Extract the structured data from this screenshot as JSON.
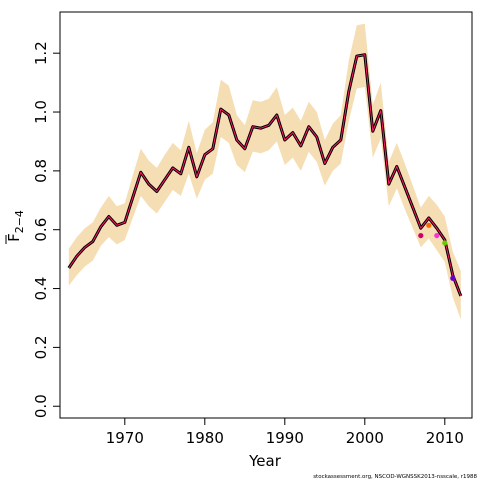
{
  "chart_data": {
    "type": "line",
    "xlabel": "Year",
    "ylabel_main": "F",
    "ylabel_sub": "2−4",
    "footer": "stockassessment.org, NSCOD-WGNSSK2013-nsscale, r1988",
    "xlim": [
      1961.9,
      2013.4
    ],
    "ylim": [
      -0.04,
      1.34
    ],
    "x_ticks": [
      1970,
      1980,
      1990,
      2000,
      2010
    ],
    "x_tick_labels": [
      "1970",
      "1980",
      "1990",
      "2000",
      "2010"
    ],
    "y_ticks": [
      0.0,
      0.2,
      0.4,
      0.6,
      0.8,
      1.0,
      1.2
    ],
    "y_tick_labels": [
      "0.0",
      "0.2",
      "0.4",
      "0.6",
      "0.8",
      "1.0",
      "1.2"
    ],
    "grid": false,
    "colors": {
      "band": "#f5deb3",
      "main": "#000000",
      "overlay": "#ff1a66"
    },
    "series": [
      {
        "x": [
          1963,
          1964,
          1965,
          1966,
          1967,
          1968,
          1969,
          1970,
          1971,
          1972,
          1973,
          1974,
          1975,
          1976,
          1977,
          1978,
          1979,
          1980,
          1981,
          1982,
          1983,
          1984,
          1985,
          1986,
          1987,
          1988,
          1989,
          1990,
          1991,
          1992,
          1993,
          1994,
          1995,
          1996,
          1997,
          1998,
          1999,
          2000,
          2001,
          2002,
          2003,
          2004,
          2005,
          2006,
          2007,
          2008,
          2009,
          2010,
          2011,
          2012
        ],
        "values": [
          0.47,
          0.51,
          0.54,
          0.56,
          0.61,
          0.645,
          0.615,
          0.625,
          0.71,
          0.795,
          0.755,
          0.73,
          0.77,
          0.81,
          0.79,
          0.88,
          0.78,
          0.855,
          0.875,
          1.01,
          0.99,
          0.905,
          0.875,
          0.95,
          0.945,
          0.955,
          0.99,
          0.905,
          0.93,
          0.885,
          0.95,
          0.915,
          0.825,
          0.88,
          0.905,
          1.07,
          1.19,
          1.195,
          0.935,
          1.005,
          0.755,
          0.815,
          0.745,
          0.675,
          0.605,
          0.64,
          0.605,
          0.565,
          0.445,
          0.375
        ],
        "lower": [
          0.41,
          0.445,
          0.475,
          0.495,
          0.545,
          0.575,
          0.55,
          0.565,
          0.64,
          0.715,
          0.68,
          0.655,
          0.695,
          0.735,
          0.715,
          0.79,
          0.705,
          0.77,
          0.79,
          0.915,
          0.895,
          0.82,
          0.795,
          0.865,
          0.86,
          0.87,
          0.9,
          0.82,
          0.845,
          0.8,
          0.865,
          0.83,
          0.75,
          0.8,
          0.825,
          0.97,
          1.08,
          1.085,
          0.845,
          0.91,
          0.68,
          0.74,
          0.67,
          0.605,
          0.54,
          0.57,
          0.53,
          0.49,
          0.37,
          0.295
        ],
        "upper": [
          0.535,
          0.575,
          0.605,
          0.625,
          0.675,
          0.715,
          0.68,
          0.69,
          0.785,
          0.875,
          0.835,
          0.81,
          0.855,
          0.895,
          0.87,
          0.97,
          0.86,
          0.94,
          0.965,
          1.11,
          1.09,
          0.99,
          0.955,
          1.04,
          1.035,
          1.045,
          1.085,
          0.99,
          1.015,
          0.97,
          1.035,
          1.0,
          0.905,
          0.96,
          0.99,
          1.175,
          1.295,
          1.3,
          1.025,
          1.1,
          0.83,
          0.895,
          0.825,
          0.75,
          0.675,
          0.715,
          0.685,
          0.645,
          0.525,
          0.46
        ]
      }
    ],
    "retro_points": [
      {
        "x": 2007,
        "y": 0.58,
        "color": "#cc0066"
      },
      {
        "x": 2008,
        "y": 0.615,
        "color": "#ff6600"
      },
      {
        "x": 2009,
        "y": 0.58,
        "color": "#ff33cc"
      },
      {
        "x": 2010,
        "y": 0.555,
        "color": "#66cc00"
      },
      {
        "x": 2011,
        "y": 0.435,
        "color": "#6600cc"
      }
    ]
  }
}
